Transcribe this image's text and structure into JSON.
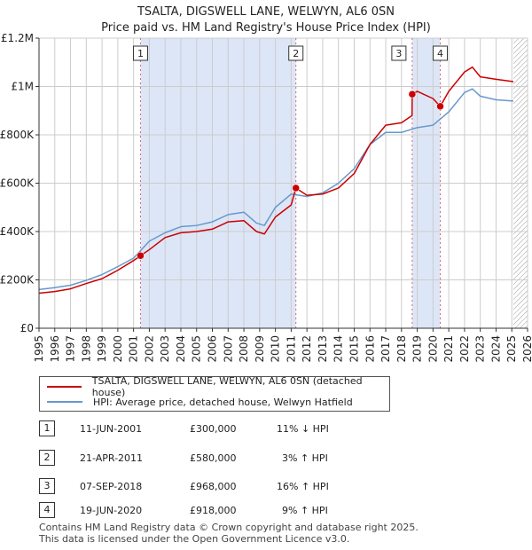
{
  "header": {
    "title_line1": "TSALTA, DIGSWELL LANE, WELWYN, AL6 0SN",
    "title_line2": "Price paid vs. HM Land Registry's House Price Index (HPI)"
  },
  "colors": {
    "property": "#cc0000",
    "hpi": "#6699cc",
    "shade": "#dde6f7",
    "grid": "#cccccc",
    "marker_line": "#e06070"
  },
  "chart_data": {
    "type": "line",
    "title": "Price paid vs. HM Land Registry's House Price Index (HPI)",
    "xlabel": "",
    "ylabel": "",
    "xlim": [
      1995,
      2026
    ],
    "ylim": [
      0,
      1200000
    ],
    "x_ticks": [
      "1995",
      "1996",
      "1997",
      "1998",
      "1999",
      "2000",
      "2001",
      "2002",
      "2003",
      "2004",
      "2005",
      "2006",
      "2007",
      "2008",
      "2009",
      "2010",
      "2011",
      "2012",
      "2013",
      "2014",
      "2015",
      "2016",
      "2017",
      "2018",
      "2019",
      "2020",
      "2021",
      "2022",
      "2023",
      "2024",
      "2025",
      "2026"
    ],
    "y_ticks": [
      {
        "value": 0,
        "label": "£0"
      },
      {
        "value": 200000,
        "label": "£200K"
      },
      {
        "value": 400000,
        "label": "£400K"
      },
      {
        "value": 600000,
        "label": "£600K"
      },
      {
        "value": 800000,
        "label": "£800K"
      },
      {
        "value": 1000000,
        "label": "£1M"
      },
      {
        "value": 1200000,
        "label": "£1.2M"
      }
    ],
    "grid": true,
    "shaded_ranges": [
      [
        2001.44,
        2011.3
      ],
      [
        2018.68,
        2020.46
      ]
    ],
    "future_hatch_from": 2025.1,
    "series": [
      {
        "name": "TSALTA, DIGSWELL LANE, WELWYN, AL6 0SN (detached house)",
        "color": "#cc0000",
        "x": [
          1995,
          1996,
          1997,
          1998,
          1999,
          2000,
          2001,
          2001.44,
          2002,
          2003,
          2004,
          2005,
          2006,
          2007,
          2008,
          2008.8,
          2009.3,
          2010,
          2011,
          2011.3,
          2012,
          2013,
          2014,
          2015,
          2016,
          2017,
          2018,
          2018.67,
          2018.68,
          2019,
          2020,
          2020.46,
          2021,
          2022,
          2022.5,
          2023,
          2024,
          2025.1
        ],
        "y": [
          145000,
          152000,
          163000,
          185000,
          205000,
          240000,
          280000,
          300000,
          325000,
          375000,
          395000,
          400000,
          410000,
          440000,
          445000,
          400000,
          390000,
          460000,
          510000,
          580000,
          550000,
          555000,
          580000,
          640000,
          760000,
          840000,
          850000,
          880000,
          968000,
          980000,
          950000,
          918000,
          980000,
          1060000,
          1080000,
          1040000,
          1030000,
          1020000
        ]
      },
      {
        "name": "HPI: Average price, detached house, Welwyn Hatfield",
        "color": "#6699cc",
        "x": [
          1995,
          1996,
          1997,
          1998,
          1999,
          2000,
          2001,
          2002,
          2003,
          2004,
          2005,
          2006,
          2007,
          2008,
          2008.8,
          2009.3,
          2010,
          2011,
          2012,
          2013,
          2014,
          2015,
          2016,
          2017,
          2018,
          2019,
          2020,
          2021,
          2022,
          2022.5,
          2023,
          2024,
          2025.1
        ],
        "y": [
          160000,
          168000,
          178000,
          198000,
          222000,
          255000,
          290000,
          360000,
          395000,
          420000,
          425000,
          440000,
          470000,
          480000,
          435000,
          425000,
          500000,
          555000,
          545000,
          560000,
          600000,
          660000,
          760000,
          810000,
          810000,
          830000,
          840000,
          895000,
          975000,
          990000,
          960000,
          945000,
          940000
        ]
      }
    ],
    "transactions": [
      {
        "label": "1",
        "x": 2001.44,
        "y": 300000
      },
      {
        "label": "2",
        "x": 2011.3,
        "y": 580000
      },
      {
        "label": "3",
        "x": 2018.68,
        "y": 968000
      },
      {
        "label": "4",
        "x": 2020.46,
        "y": 918000
      }
    ]
  },
  "legend": {
    "property_label": "TSALTA, DIGSWELL LANE, WELWYN, AL6 0SN (detached house)",
    "hpi_label": "HPI: Average price, detached house, Welwyn Hatfield"
  },
  "table": [
    {
      "num": "1",
      "date": "11-JUN-2001",
      "price": "£300,000",
      "pct": "11% ↓ HPI"
    },
    {
      "num": "2",
      "date": "21-APR-2011",
      "price": "£580,000",
      "pct": "3% ↑ HPI"
    },
    {
      "num": "3",
      "date": "07-SEP-2018",
      "price": "£968,000",
      "pct": "16% ↑ HPI"
    },
    {
      "num": "4",
      "date": "19-JUN-2020",
      "price": "£918,000",
      "pct": "9% ↑ HPI"
    }
  ],
  "footer": {
    "line1": "Contains HM Land Registry data © Crown copyright and database right 2025.",
    "line2": "This data is licensed under the Open Government Licence v3.0."
  }
}
